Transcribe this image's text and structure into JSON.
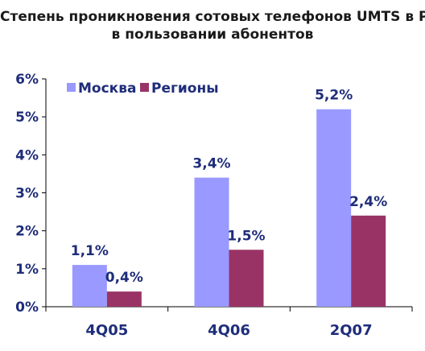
{
  "title_lines": [
    "Степень проникновения сотовых телефонов UMTS в РФ",
    "в пользовании абонентов"
  ],
  "chart_data": {
    "type": "bar",
    "title": "Степень проникновения сотовых телефонов UMTS в РФ в пользовании абонентов",
    "categories": [
      "4Q05",
      "4Q06",
      "2Q07"
    ],
    "series": [
      {
        "name": "Москва",
        "values": [
          1.1,
          3.4,
          5.2
        ],
        "labels": [
          "1,1%",
          "3,4%",
          "5,2%"
        ],
        "color": "#9999ff"
      },
      {
        "name": "Регионы",
        "values": [
          0.4,
          1.5,
          2.4
        ],
        "labels": [
          "0,4%",
          "1,5%",
          "2,4%"
        ],
        "color": "#993366"
      }
    ],
    "ylim": [
      0,
      6
    ],
    "yticks": [
      "0%",
      "1%",
      "2%",
      "3%",
      "4%",
      "5%",
      "6%"
    ],
    "grid": false,
    "legend_position": "top-left",
    "axis_text_color": "#1f2d7a"
  }
}
